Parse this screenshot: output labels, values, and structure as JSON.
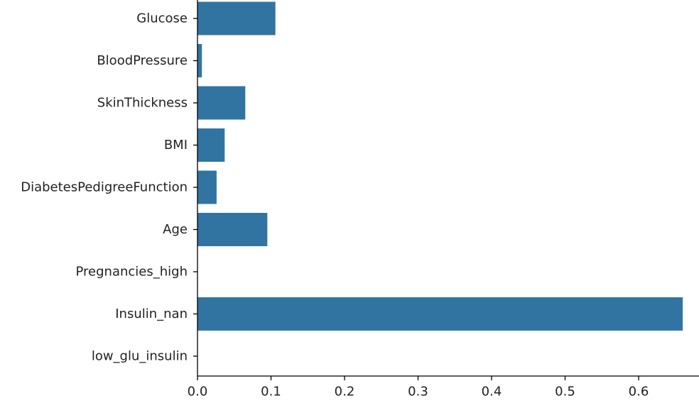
{
  "chart_data": {
    "type": "bar",
    "orientation": "horizontal",
    "categories": [
      "Glucose",
      "BloodPressure",
      "SkinThickness",
      "BMI",
      "DiabetesPedigreeFunction",
      "Age",
      "Pregnancies_high",
      "Insulin_nan",
      "low_glu_insulin"
    ],
    "values": [
      0.106,
      0.006,
      0.065,
      0.037,
      0.026,
      0.095,
      0.0,
      0.66,
      0.0
    ],
    "title": "",
    "xlabel": "",
    "ylabel": "",
    "xlim": [
      0,
      0.68
    ],
    "xticks": [
      0.0,
      0.1,
      0.2,
      0.3,
      0.4,
      0.5,
      0.6
    ],
    "xtick_labels": [
      "0.0",
      "0.1",
      "0.2",
      "0.3",
      "0.4",
      "0.5",
      "0.6"
    ],
    "grid": false,
    "bar_color": "#3274a1"
  }
}
